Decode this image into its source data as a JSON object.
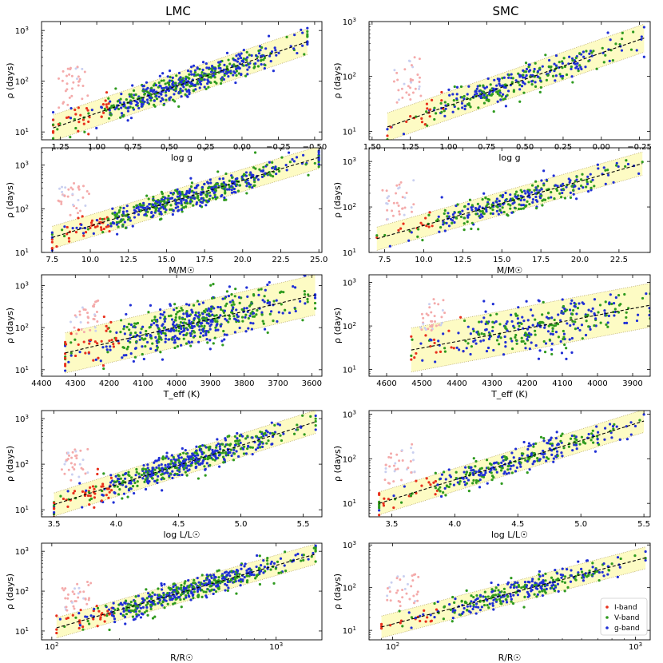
{
  "figure": {
    "columns": [
      "LMC",
      "SMC"
    ],
    "legend": [
      {
        "label": "I-band",
        "color": "#e8301c"
      },
      {
        "label": "V-band",
        "color": "#2e9a1e"
      },
      {
        "label": "g-band",
        "color": "#1f2fd6"
      }
    ],
    "colors": {
      "fit_band": "#fdfbc4",
      "fit_line": "#000000",
      "band_edge": "#b8a86a",
      "faint_points": "#f4aaaa"
    }
  },
  "chart_data": [
    {
      "type": "scatter",
      "galaxy": "LMC",
      "title": "LMC",
      "xlabel": "log g",
      "ylabel": "ρ  (days)",
      "xscale": "linear",
      "xlim": [
        1.38,
        -0.55
      ],
      "yscale": "log",
      "ylim": [
        7,
        1500
      ],
      "xticks": [
        1.25,
        1.0,
        0.75,
        0.5,
        0.25,
        0.0,
        -0.25,
        -0.5
      ],
      "xticklabels": [
        "1.25",
        "1.00",
        "0.75",
        "0.50",
        "0.25",
        "0.00",
        "−0.25",
        "−0.50"
      ],
      "yticks": [
        10,
        100,
        1000
      ],
      "yticklabels": [
        "10¹",
        "10²",
        "10³"
      ],
      "fit_line": {
        "x": [
          1.3,
          -0.45
        ],
        "y": [
          12,
          600
        ]
      },
      "band_factor": 1.8,
      "series": [
        "I-band",
        "V-band",
        "g-band"
      ]
    },
    {
      "type": "scatter",
      "galaxy": "SMC",
      "title": "SMC",
      "xlabel": "log g",
      "ylabel": "ρ  (days)",
      "xscale": "linear",
      "xlim": [
        1.52,
        -0.32
      ],
      "yscale": "log",
      "ylim": [
        7,
        1000
      ],
      "xticks": [
        1.5,
        1.25,
        1.0,
        0.75,
        0.5,
        0.25,
        0.0,
        -0.25
      ],
      "xticklabels": [
        "1.50",
        "1.25",
        "1.00",
        "0.75",
        "0.50",
        "0.25",
        "0.00",
        "−0.25"
      ],
      "yticks": [
        10,
        100,
        1000
      ],
      "yticklabels": [
        "10¹",
        "10²",
        "10³"
      ],
      "fit_line": {
        "x": [
          1.4,
          -0.28
        ],
        "y": [
          12,
          500
        ]
      },
      "band_factor": 1.8,
      "series": [
        "I-band",
        "V-band",
        "g-band"
      ]
    },
    {
      "type": "scatter",
      "galaxy": "LMC",
      "xlabel": "M/M☉",
      "ylabel": "ρ  (days)",
      "xscale": "linear",
      "xlim": [
        6.8,
        25.2
      ],
      "yscale": "log",
      "ylim": [
        10,
        2500
      ],
      "xticks": [
        7.5,
        10.0,
        12.5,
        15.0,
        17.5,
        20.0,
        22.5,
        25.0
      ],
      "xticklabels": [
        "7.5",
        "10.0",
        "12.5",
        "15.0",
        "17.5",
        "20.0",
        "22.5",
        "25.0"
      ],
      "yticks": [
        10,
        100,
        1000
      ],
      "yticklabels": [
        "10¹",
        "10²",
        "10³"
      ],
      "fit_line": {
        "x": [
          7.5,
          25.0
        ],
        "y": [
          22,
          1500
        ]
      },
      "band_factor": 1.8,
      "series": [
        "I-band",
        "V-band",
        "g-band"
      ]
    },
    {
      "type": "scatter",
      "galaxy": "SMC",
      "xlabel": "M/M☉",
      "ylabel": "ρ  (days)",
      "xscale": "linear",
      "xlim": [
        6.5,
        24.5
      ],
      "yscale": "log",
      "ylim": [
        10,
        2000
      ],
      "xticks": [
        7.5,
        10.0,
        12.5,
        15.0,
        17.5,
        20.0,
        22.5
      ],
      "xticklabels": [
        "7.5",
        "10.0",
        "12.5",
        "15.0",
        "17.5",
        "20.0",
        "22.5"
      ],
      "yticks": [
        10,
        100,
        1000
      ],
      "yticklabels": [
        "10¹",
        "10²",
        "10³"
      ],
      "fit_line": {
        "x": [
          7.0,
          24.0
        ],
        "y": [
          20,
          900
        ]
      },
      "band_factor": 1.8,
      "series": [
        "I-band",
        "V-band",
        "g-band"
      ]
    },
    {
      "type": "scatter",
      "galaxy": "LMC",
      "xlabel": "T_eff  (K)",
      "ylabel": "ρ  (days)",
      "xscale": "linear",
      "xlim": [
        4400,
        3570
      ],
      "yscale": "log",
      "ylim": [
        7,
        1800
      ],
      "xticks": [
        4400,
        4300,
        4200,
        4100,
        4000,
        3900,
        3800,
        3700,
        3600
      ],
      "xticklabels": [
        "4400",
        "4300",
        "4200",
        "4100",
        "4000",
        "3900",
        "3800",
        "3700",
        "3600"
      ],
      "yticks": [
        10,
        100,
        1000
      ],
      "yticklabels": [
        "10¹",
        "10²",
        "10³"
      ],
      "fit_line": {
        "x": [
          4330,
          3590
        ],
        "y": [
          25,
          600
        ]
      },
      "band_factor": 3.0,
      "series": [
        "I-band",
        "V-band",
        "g-band"
      ]
    },
    {
      "type": "scatter",
      "galaxy": "SMC",
      "xlabel": "T_eff  (K)",
      "ylabel": "ρ  (days)",
      "xscale": "linear",
      "xlim": [
        4650,
        3850
      ],
      "yscale": "log",
      "ylim": [
        7,
        1500
      ],
      "xticks": [
        4600,
        4500,
        4400,
        4300,
        4200,
        4100,
        4000,
        3900
      ],
      "xticklabels": [
        "4600",
        "4500",
        "4400",
        "4300",
        "4200",
        "4100",
        "4000",
        "3900"
      ],
      "yticks": [
        10,
        100,
        1000
      ],
      "yticklabels": [
        "10¹",
        "10²",
        "10³"
      ],
      "fit_line": {
        "x": [
          4530,
          3850
        ],
        "y": [
          28,
          300
        ]
      },
      "band_factor": 3.2,
      "series": [
        "I-band",
        "V-band",
        "g-band"
      ]
    },
    {
      "type": "scatter",
      "galaxy": "LMC",
      "xlabel": "log L/L☉",
      "ylabel": "ρ  (days)",
      "xscale": "linear",
      "xlim": [
        3.4,
        5.65
      ],
      "yscale": "log",
      "ylim": [
        7,
        1500
      ],
      "xticks": [
        3.5,
        4.0,
        4.5,
        5.0,
        5.5
      ],
      "xticklabels": [
        "3.5",
        "4.0",
        "4.5",
        "5.0",
        "5.5"
      ],
      "yticks": [
        10,
        100,
        1000
      ],
      "yticklabels": [
        "10¹",
        "10²",
        "10³"
      ],
      "fit_line": {
        "x": [
          3.5,
          5.6
        ],
        "y": [
          13,
          850
        ]
      },
      "band_factor": 1.8,
      "series": [
        "I-band",
        "V-band",
        "g-band"
      ]
    },
    {
      "type": "scatter",
      "galaxy": "SMC",
      "xlabel": "log L/L☉",
      "ylabel": "ρ  (days)",
      "xscale": "linear",
      "xlim": [
        3.32,
        5.55
      ],
      "yscale": "log",
      "ylim": [
        5,
        1200
      ],
      "xticks": [
        3.5,
        4.0,
        4.5,
        5.0,
        5.5
      ],
      "xticklabels": [
        "3.5",
        "4.0",
        "4.5",
        "5.0",
        "5.5"
      ],
      "yticks": [
        10,
        100,
        1000
      ],
      "yticklabels": [
        "10¹",
        "10²",
        "10³"
      ],
      "fit_line": {
        "x": [
          3.4,
          5.5
        ],
        "y": [
          10,
          700
        ]
      },
      "band_factor": 1.8,
      "series": [
        "I-band",
        "V-band",
        "g-band"
      ]
    },
    {
      "type": "scatter",
      "galaxy": "LMC",
      "xlabel": "R/R☉",
      "ylabel": "ρ  (days)",
      "xscale": "log",
      "xlim": [
        90,
        1600
      ],
      "yscale": "log",
      "ylim": [
        6,
        1600
      ],
      "xticks": [
        100,
        1000
      ],
      "xticklabels": [
        "10²",
        "10³"
      ],
      "yticks": [
        10,
        100,
        1000
      ],
      "yticklabels": [
        "10¹",
        "10²",
        "10³"
      ],
      "fit_line": {
        "x": [
          105,
          1500
        ],
        "y": [
          12,
          850
        ]
      },
      "band_factor": 1.8,
      "series": [
        "I-band",
        "V-band",
        "g-band"
      ]
    },
    {
      "type": "scatter",
      "galaxy": "SMC",
      "xlabel": "R/R☉",
      "ylabel": "ρ  (days)",
      "xscale": "log",
      "xlim": [
        80,
        1150
      ],
      "yscale": "log",
      "ylim": [
        6,
        1100
      ],
      "xticks": [
        100,
        1000
      ],
      "xticklabels": [
        "10²",
        "10³"
      ],
      "yticks": [
        10,
        100,
        1000
      ],
      "yticklabels": [
        "10¹",
        "10²",
        "10³"
      ],
      "fit_line": {
        "x": [
          90,
          1100
        ],
        "y": [
          12,
          500
        ]
      },
      "band_factor": 1.8,
      "series": [
        "I-band",
        "V-band",
        "g-band"
      ],
      "legend": [
        "I-band",
        "V-band",
        "g-band"
      ]
    }
  ]
}
